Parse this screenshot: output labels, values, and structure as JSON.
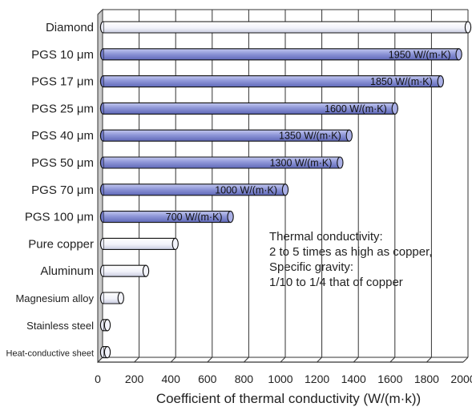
{
  "chart_data": {
    "type": "bar",
    "orientation": "horizontal",
    "categories": [
      "Diamond",
      "PGS 10 μm",
      "PGS 17 μm",
      "PGS 25 μm",
      "PGS 40 μm",
      "PGS 50 μm",
      "PGS 70 μm",
      "PGS 100 μm",
      "Pure copper",
      "Aluminum",
      "Magnesium alloy",
      "Stainless steel",
      "Heat-conductive sheet"
    ],
    "values": [
      2000,
      1950,
      1850,
      1600,
      1350,
      1300,
      1000,
      700,
      398,
      237,
      100,
      16,
      5
    ],
    "data_labels": [
      "",
      "1950 W/(m·K)",
      "1850 W/(m·K)",
      "1600 W/(m·K)",
      "1350 W/(m·K)",
      "1300 W/(m·K)",
      "1000 W/(m·K)",
      "700 W/(m·K)",
      "",
      "",
      "",
      "",
      ""
    ],
    "highlight": [
      false,
      true,
      true,
      true,
      true,
      true,
      true,
      true,
      false,
      false,
      false,
      false,
      false
    ],
    "xlabel": "Coefficient of thermal conductivity (W/(m·k))",
    "xlim": [
      0,
      2000
    ],
    "xticks": [
      "0",
      "200",
      "400",
      "600",
      "800",
      "1000",
      "1200",
      "1400",
      "1600",
      "1800",
      "2000"
    ],
    "grid": true,
    "colors": {
      "highlight": "#8f97d8",
      "plain": "#f5f6fb",
      "outline": "#111111",
      "wall": "#c9c9c9"
    },
    "annotation": [
      "Thermal conductivity:",
      "2 to 5 times as high as copper,",
      "Specific gravity:",
      "1/10 to 1/4 that of copper"
    ]
  }
}
